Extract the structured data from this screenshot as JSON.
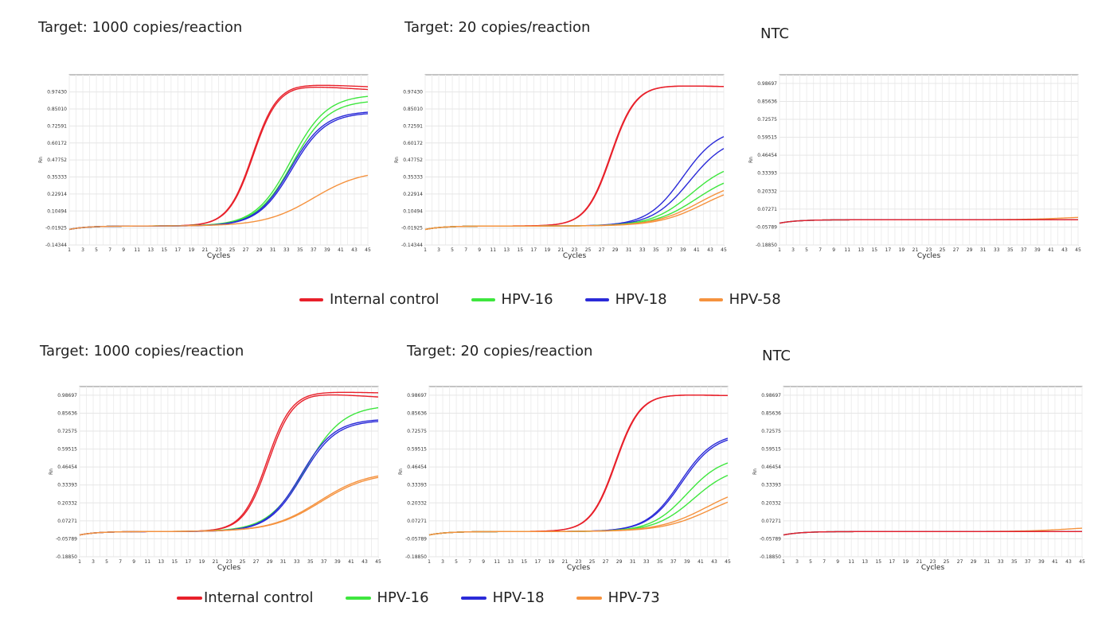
{
  "colors": {
    "Internal control": "#e8202a",
    "HPV-16": "#3ee63e",
    "HPV-18": "#2a2ad8",
    "HPV-58": "#f5923e",
    "HPV-73": "#f5923e"
  },
  "chart_data": [
    {
      "type": "line",
      "title": "Target: 1000 copies/reaction",
      "xlabel": "Cycles",
      "ylabel": "Rn",
      "ylim": [
        -0.14344,
        1.1
      ],
      "yticks": [
        "0.97430",
        "0.85010",
        "0.72591",
        "0.60172",
        "0.47752",
        "0.35333",
        "0.22914",
        "0.10494",
        "-0.01925",
        "-0.14344"
      ],
      "xticks": [
        "1",
        "3",
        "5",
        "7",
        "9",
        "11",
        "13",
        "15",
        "17",
        "19",
        "21",
        "23",
        "25",
        "27",
        "29",
        "31",
        "33",
        "35",
        "37",
        "39",
        "41",
        "43",
        "45"
      ],
      "series": [
        {
          "name": "Internal control",
          "plateau": 1.04,
          "ct": 28.0,
          "k": 0.55,
          "drift": -0.02
        },
        {
          "name": "Internal control",
          "plateau": 1.03,
          "ct": 28.1,
          "k": 0.55,
          "drift": -0.03
        },
        {
          "name": "HPV-16",
          "plateau": 0.96,
          "ct": 33.7,
          "k": 0.38,
          "drift": 0
        },
        {
          "name": "HPV-16",
          "plateau": 0.92,
          "ct": 33.9,
          "k": 0.38,
          "drift": 0
        },
        {
          "name": "HPV-18",
          "plateau": 0.84,
          "ct": 33.6,
          "k": 0.4,
          "drift": 0
        },
        {
          "name": "HPV-18",
          "plateau": 0.83,
          "ct": 33.8,
          "k": 0.4,
          "drift": 0
        },
        {
          "name": "HPV-58",
          "plateau": 0.41,
          "ct": 37.0,
          "k": 0.28,
          "drift": 0
        }
      ]
    },
    {
      "type": "line",
      "title": "Target: 20 copies/reaction",
      "xlabel": "Cycles",
      "ylabel": "Rn",
      "ylim": [
        -0.14344,
        1.1
      ],
      "yticks": [
        "0.97430",
        "0.85010",
        "0.72591",
        "0.60172",
        "0.47752",
        "0.35333",
        "0.22914",
        "0.10494",
        "-0.01925",
        "-0.14344"
      ],
      "xticks": [
        "1",
        "3",
        "5",
        "7",
        "9",
        "11",
        "13",
        "15",
        "17",
        "19",
        "21",
        "23",
        "25",
        "27",
        "29",
        "31",
        "33",
        "35",
        "37",
        "39",
        "41",
        "43",
        "45"
      ],
      "series": [
        {
          "name": "Internal control",
          "plateau": 1.03,
          "ct": 28.3,
          "k": 0.55,
          "drift": -0.01
        },
        {
          "name": "Internal control",
          "plateau": 1.03,
          "ct": 28.4,
          "k": 0.55,
          "drift": -0.01
        },
        {
          "name": "HPV-18",
          "plateau": 0.72,
          "ct": 39.0,
          "k": 0.38,
          "drift": 0
        },
        {
          "name": "HPV-18",
          "plateau": 0.66,
          "ct": 40.0,
          "k": 0.36,
          "drift": 0
        },
        {
          "name": "HPV-16",
          "plateau": 0.48,
          "ct": 40.3,
          "k": 0.34,
          "drift": 0
        },
        {
          "name": "HPV-16",
          "plateau": 0.4,
          "ct": 41.0,
          "k": 0.32,
          "drift": 0
        },
        {
          "name": "HPV-58",
          "plateau": 0.35,
          "ct": 41.5,
          "k": 0.3,
          "drift": 0
        },
        {
          "name": "HPV-58",
          "plateau": 0.32,
          "ct": 42.0,
          "k": 0.3,
          "drift": 0
        }
      ]
    },
    {
      "type": "line",
      "title": "NTC",
      "xlabel": "Cycles",
      "ylabel": "Rn",
      "ylim": [
        -0.1885,
        1.05
      ],
      "yticks": [
        "0.98697",
        "0.85636",
        "0.72575",
        "0.59515",
        "0.46454",
        "0.33393",
        "0.20332",
        "0.07271",
        "-0.05789",
        "-0.18850"
      ],
      "xticks": [
        "1",
        "3",
        "5",
        "7",
        "9",
        "11",
        "13",
        "15",
        "17",
        "19",
        "21",
        "23",
        "25",
        "27",
        "29",
        "31",
        "33",
        "35",
        "37",
        "39",
        "41",
        "43",
        "45"
      ],
      "series": [
        {
          "name": "HPV-58",
          "plateau": 0.03,
          "ct": 44.0,
          "k": 0.3,
          "drift": 0
        },
        {
          "name": "HPV-16",
          "plateau": 0.0,
          "ct": 45,
          "k": 0.3,
          "drift": 0
        },
        {
          "name": "HPV-18",
          "plateau": 0.0,
          "ct": 45,
          "k": 0.3,
          "drift": 0
        },
        {
          "name": "Internal control",
          "plateau": 0.0,
          "ct": 45,
          "k": 0.3,
          "drift": 0
        }
      ]
    },
    {
      "type": "line",
      "title": "Target: 1000 copies/reaction",
      "xlabel": "Cycles",
      "ylabel": "Rn",
      "ylim": [
        -0.1885,
        1.05
      ],
      "yticks": [
        "0.98697",
        "0.85636",
        "0.72575",
        "0.59515",
        "0.46454",
        "0.33393",
        "0.20332",
        "0.07271",
        "-0.05789",
        "-0.18850"
      ],
      "xticks": [
        "1",
        "3",
        "5",
        "7",
        "9",
        "11",
        "13",
        "15",
        "17",
        "19",
        "21",
        "23",
        "25",
        "27",
        "29",
        "31",
        "33",
        "35",
        "37",
        "39",
        "41",
        "43",
        "45"
      ],
      "series": [
        {
          "name": "Internal control",
          "plateau": 1.02,
          "ct": 28.6,
          "k": 0.55,
          "drift": -0.01
        },
        {
          "name": "Internal control",
          "plateau": 1.01,
          "ct": 28.8,
          "k": 0.55,
          "drift": -0.03
        },
        {
          "name": "HPV-16",
          "plateau": 0.92,
          "ct": 34.3,
          "k": 0.36,
          "drift": 0
        },
        {
          "name": "HPV-18",
          "plateau": 0.82,
          "ct": 33.6,
          "k": 0.4,
          "drift": 0
        },
        {
          "name": "HPV-18",
          "plateau": 0.81,
          "ct": 33.8,
          "k": 0.4,
          "drift": 0
        },
        {
          "name": "HPV-73",
          "plateau": 0.44,
          "ct": 36.3,
          "k": 0.28,
          "drift": 0
        },
        {
          "name": "HPV-73",
          "plateau": 0.43,
          "ct": 36.5,
          "k": 0.28,
          "drift": 0
        }
      ]
    },
    {
      "type": "line",
      "title": "Target: 20 copies/reaction",
      "xlabel": "Cycles",
      "ylabel": "Rn",
      "ylim": [
        -0.1885,
        1.05
      ],
      "yticks": [
        "0.98697",
        "0.85636",
        "0.72575",
        "0.59515",
        "0.46454",
        "0.33393",
        "0.20332",
        "0.07271",
        "-0.05789",
        "-0.18850"
      ],
      "xticks": [
        "1",
        "3",
        "5",
        "7",
        "9",
        "11",
        "13",
        "15",
        "17",
        "19",
        "21",
        "23",
        "25",
        "27",
        "29",
        "31",
        "33",
        "35",
        "37",
        "39",
        "41",
        "43",
        "45"
      ],
      "series": [
        {
          "name": "Internal control",
          "plateau": 1.0,
          "ct": 28.4,
          "k": 0.55,
          "drift": -0.01
        },
        {
          "name": "Internal control",
          "plateau": 1.0,
          "ct": 28.5,
          "k": 0.55,
          "drift": -0.01
        },
        {
          "name": "HPV-18",
          "plateau": 0.72,
          "ct": 38.0,
          "k": 0.4,
          "drift": 0
        },
        {
          "name": "HPV-18",
          "plateau": 0.71,
          "ct": 38.2,
          "k": 0.4,
          "drift": 0
        },
        {
          "name": "HPV-16",
          "plateau": 0.55,
          "ct": 39.0,
          "k": 0.38,
          "drift": 0
        },
        {
          "name": "HPV-16",
          "plateau": 0.48,
          "ct": 40.0,
          "k": 0.35,
          "drift": 0
        },
        {
          "name": "HPV-73",
          "plateau": 0.36,
          "ct": 42.0,
          "k": 0.28,
          "drift": 0
        },
        {
          "name": "HPV-73",
          "plateau": 0.32,
          "ct": 42.5,
          "k": 0.28,
          "drift": 0
        }
      ]
    },
    {
      "type": "line",
      "title": "NTC",
      "xlabel": "Cycles",
      "ylabel": "Rn",
      "ylim": [
        -0.1885,
        1.05
      ],
      "yticks": [
        "0.98697",
        "0.85636",
        "0.72575",
        "0.59515",
        "0.46454",
        "0.33393",
        "0.20332",
        "0.07271",
        "-0.05789",
        "-0.18850"
      ],
      "xticks": [
        "1",
        "3",
        "5",
        "7",
        "9",
        "11",
        "13",
        "15",
        "17",
        "19",
        "21",
        "23",
        "25",
        "27",
        "29",
        "31",
        "33",
        "35",
        "37",
        "39",
        "41",
        "43",
        "45"
      ],
      "series": [
        {
          "name": "HPV-73",
          "plateau": 0.04,
          "ct": 43.5,
          "k": 0.3,
          "drift": 0
        },
        {
          "name": "HPV-16",
          "plateau": 0.0,
          "ct": 45,
          "k": 0.3,
          "drift": 0
        },
        {
          "name": "HPV-18",
          "plateau": 0.0,
          "ct": 45,
          "k": 0.3,
          "drift": 0
        },
        {
          "name": "Internal control",
          "plateau": 0.0,
          "ct": 45,
          "k": 0.3,
          "drift": 0
        }
      ]
    }
  ],
  "legends": [
    [
      "Internal control",
      "HPV-16",
      "HPV-18",
      "HPV-58"
    ],
    [
      "Internal control",
      "HPV-16",
      "HPV-18",
      "HPV-73"
    ]
  ]
}
